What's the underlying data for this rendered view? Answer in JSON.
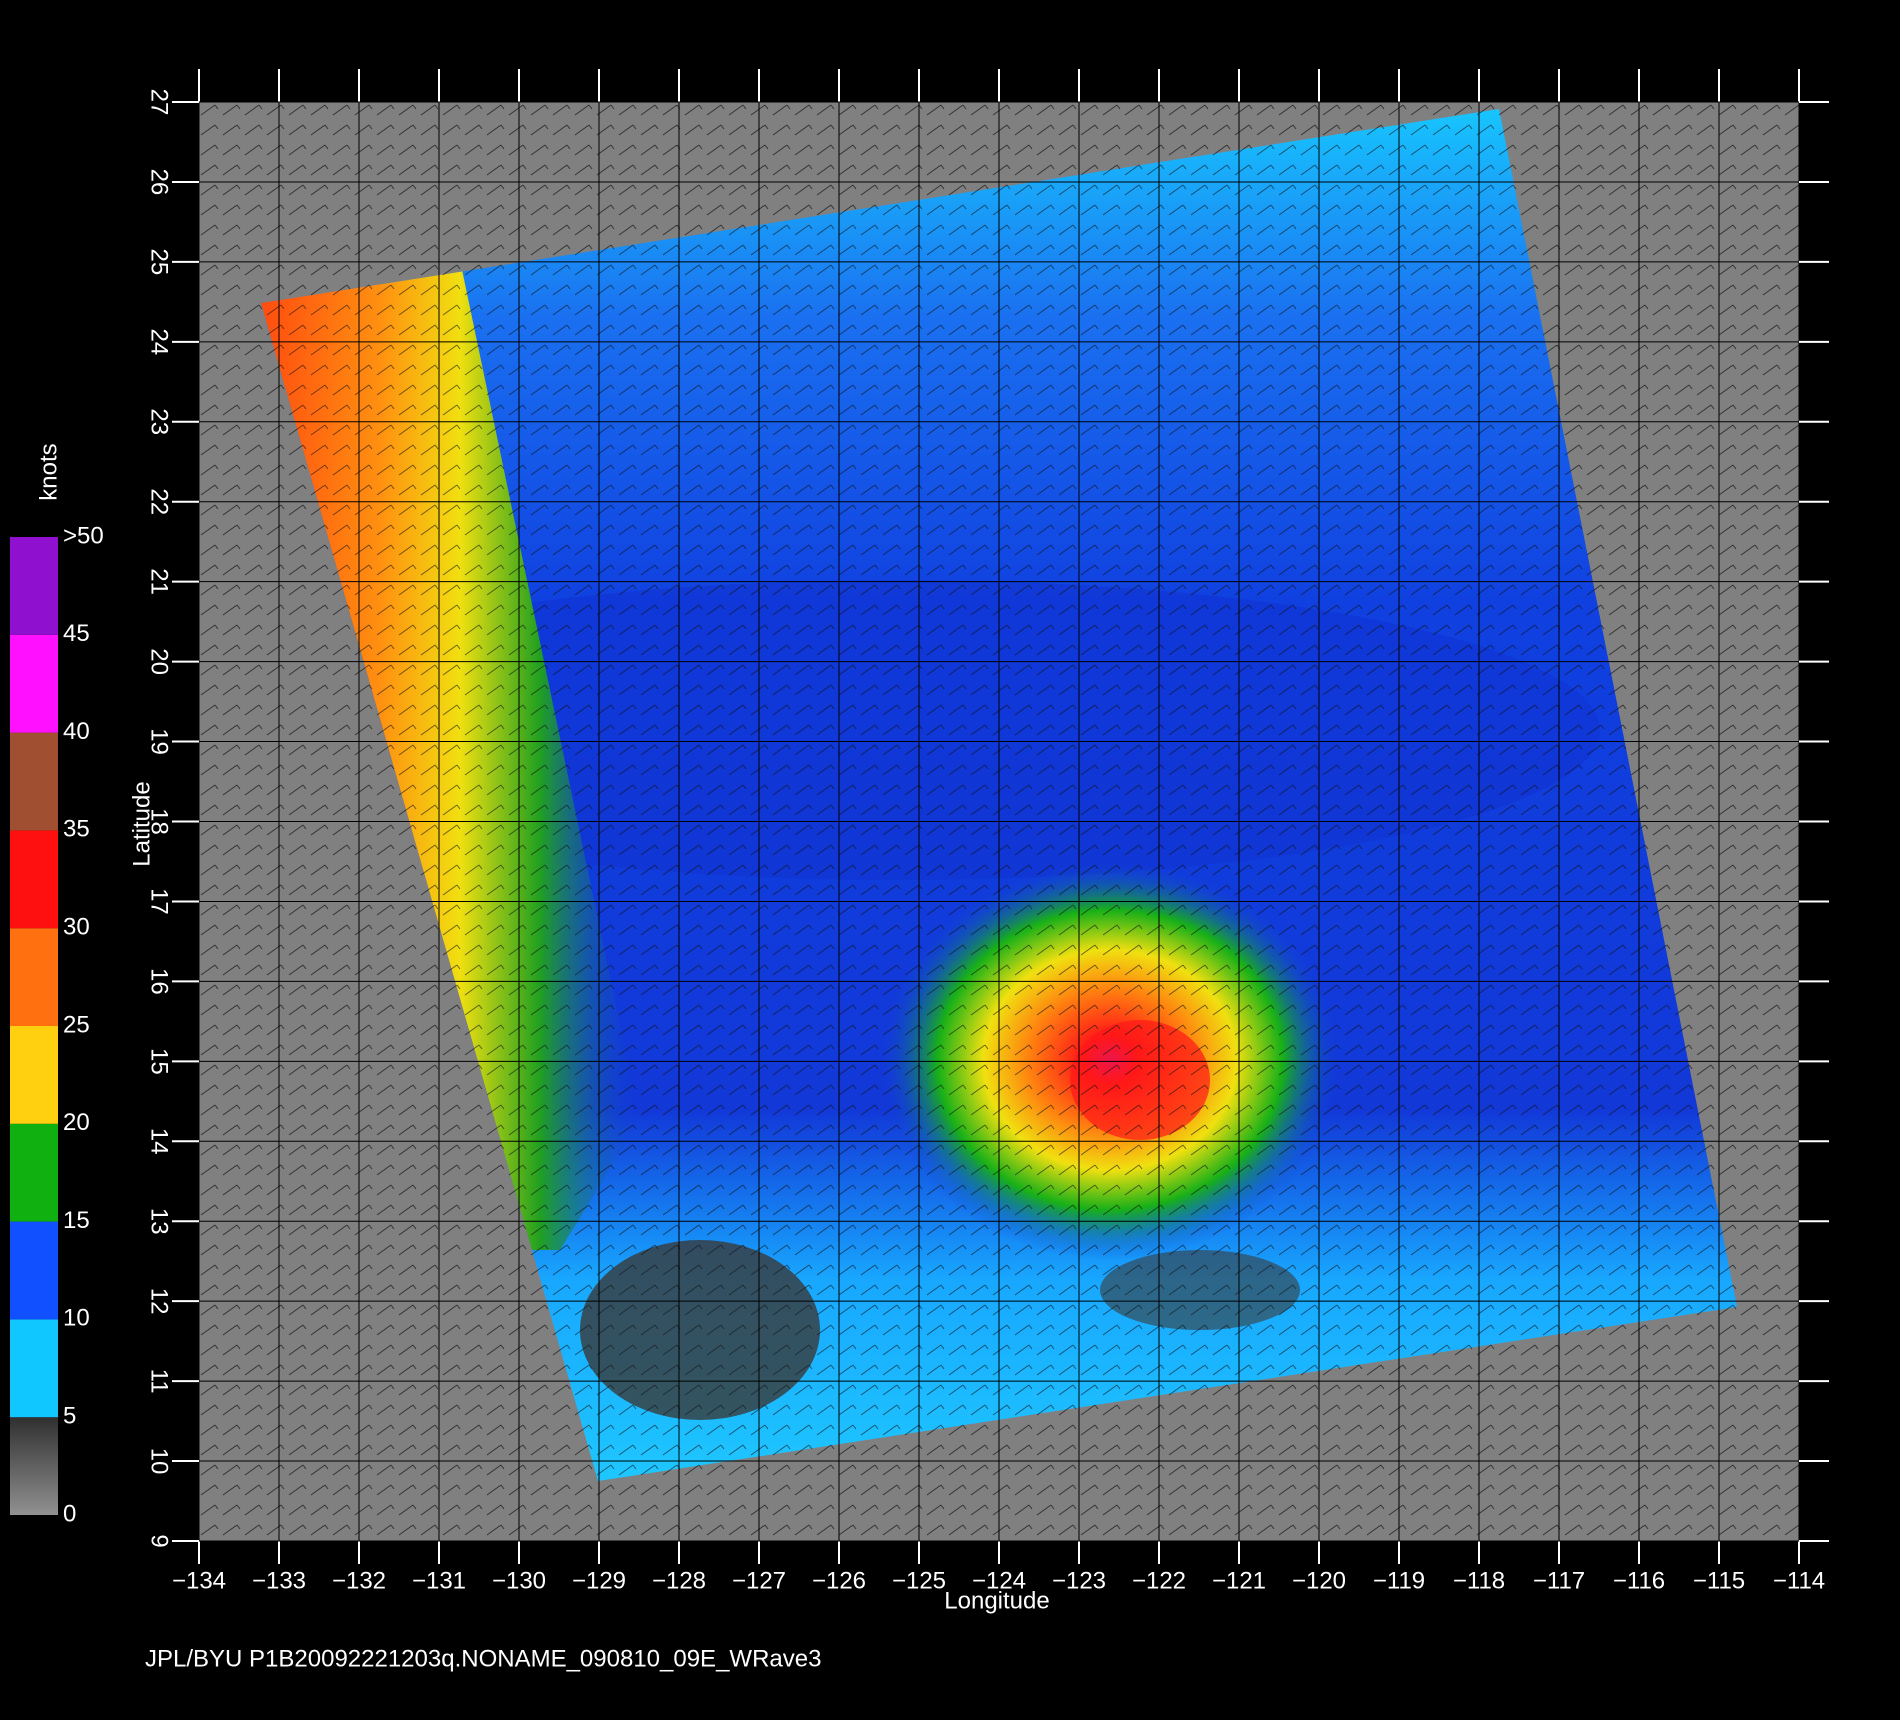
{
  "map": {
    "x_label": "Longitude",
    "y_label": "Latitude",
    "xlim": [
      -134,
      -114
    ],
    "ylim": [
      9,
      27
    ],
    "xticks": [
      {
        "value": -134,
        "label": "−134"
      },
      {
        "value": -133,
        "label": "−133"
      },
      {
        "value": -132,
        "label": "−132"
      },
      {
        "value": -131,
        "label": "−131"
      },
      {
        "value": -130,
        "label": "−130"
      },
      {
        "value": -129,
        "label": "−129"
      },
      {
        "value": -128,
        "label": "−128"
      },
      {
        "value": -127,
        "label": "−127"
      },
      {
        "value": -126,
        "label": "−126"
      },
      {
        "value": -125,
        "label": "−125"
      },
      {
        "value": -124,
        "label": "−124"
      },
      {
        "value": -123,
        "label": "−123"
      },
      {
        "value": -122,
        "label": "−122"
      },
      {
        "value": -121,
        "label": "−121"
      },
      {
        "value": -120,
        "label": "−120"
      },
      {
        "value": -119,
        "label": "−119"
      },
      {
        "value": -118,
        "label": "−118"
      },
      {
        "value": -117,
        "label": "−117"
      },
      {
        "value": -116,
        "label": "−116"
      },
      {
        "value": -115,
        "label": "−115"
      },
      {
        "value": -114,
        "label": "−114"
      }
    ],
    "yticks": [
      9,
      10,
      11,
      12,
      13,
      14,
      15,
      16,
      17,
      18,
      19,
      20,
      21,
      22,
      23,
      24,
      25,
      26,
      27
    ]
  },
  "colorbar": {
    "title": "knots",
    "lim": [
      0,
      50
    ],
    "ticks": [
      0,
      5,
      10,
      15,
      20,
      25,
      30,
      35,
      40,
      45,
      {
        "value": 50,
        "label": ">50"
      }
    ],
    "colors": [
      "#5e5e5e",
      "#10c8ff",
      "#1050ff",
      "#10b010",
      "#ffd010",
      "#ff7010",
      "#ff1010",
      "#a05030",
      "#ff10ff",
      "#9010d0"
    ]
  },
  "footer": "JPL/BYU  P1B20092221203q.NONAME_090810_09E_WRave3"
}
